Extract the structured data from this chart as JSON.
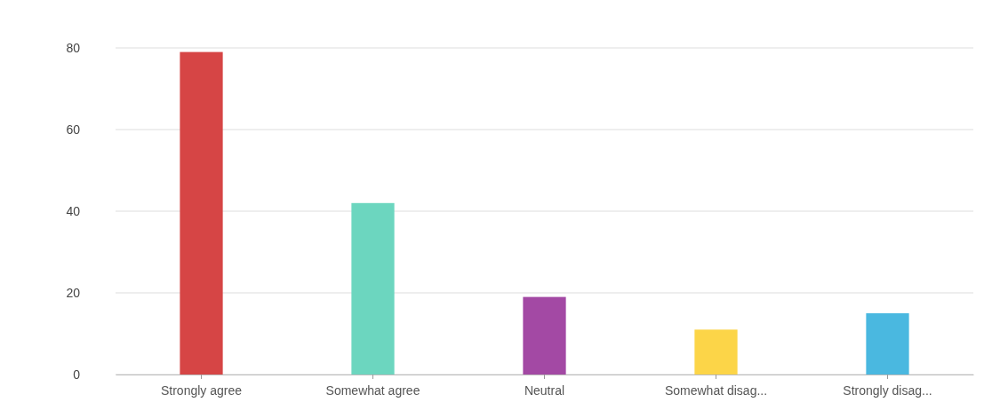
{
  "chart_data": {
    "type": "bar",
    "categories": [
      "Strongly agree",
      "Somewhat agree",
      "Neutral",
      "Somewhat disag...",
      "Strongly disag..."
    ],
    "values": [
      79,
      42,
      19,
      11,
      15
    ],
    "colors": [
      "#d64545",
      "#6cd6bf",
      "#a349a4",
      "#fcd548",
      "#4ab8e0"
    ],
    "ylim": [
      0,
      80
    ],
    "yticks": [
      0,
      20,
      40,
      60,
      80
    ],
    "grid": "y"
  }
}
